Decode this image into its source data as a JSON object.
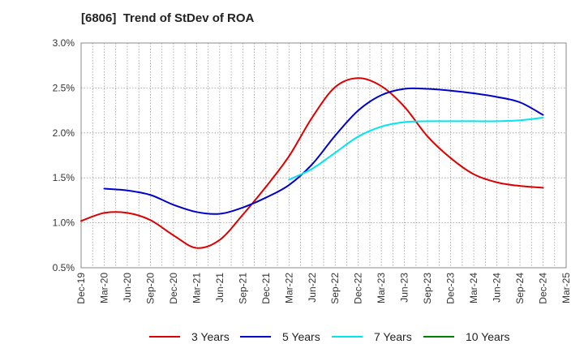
{
  "title": "[6806]  Trend of StDev of ROA",
  "chart_data": {
    "type": "line",
    "title": "[6806]  Trend of StDev of ROA",
    "xlabel": "",
    "ylabel": "",
    "x_tick_labels": [
      "Dec-19",
      "Mar-20",
      "Jun-20",
      "Sep-20",
      "Dec-20",
      "Mar-21",
      "Jun-21",
      "Sep-21",
      "Dec-21",
      "Mar-22",
      "Jun-22",
      "Sep-22",
      "Dec-22",
      "Mar-23",
      "Jun-23",
      "Sep-23",
      "Dec-23",
      "Mar-24",
      "Jun-24",
      "Sep-24",
      "Dec-24",
      "Mar-25"
    ],
    "y_tick_labels": [
      "3.0%",
      "2.5%",
      "2.0%",
      "1.5%",
      "1.0%",
      "0.5%"
    ],
    "ylim": [
      0.5,
      3.0
    ],
    "y_unit": "%",
    "grid": true,
    "legend_position": "bottom",
    "series": [
      {
        "name": "3 Years",
        "color": "#dd0000",
        "values": [
          1.02,
          1.11,
          1.11,
          1.03,
          0.86,
          0.72,
          0.81,
          1.09,
          1.4,
          1.74,
          2.17,
          2.51,
          2.61,
          2.52,
          2.29,
          1.96,
          1.72,
          1.54,
          1.45,
          1.41,
          1.39,
          null
        ]
      },
      {
        "name": "5 Years",
        "color": "#0000cc",
        "values": [
          null,
          1.38,
          1.36,
          1.31,
          1.2,
          1.12,
          1.1,
          1.17,
          1.28,
          1.42,
          1.65,
          1.97,
          2.25,
          2.42,
          2.49,
          2.49,
          2.47,
          2.44,
          2.4,
          2.34,
          2.2,
          null
        ]
      },
      {
        "name": "7 Years",
        "color": "#00e5ee",
        "values": [
          null,
          null,
          null,
          null,
          null,
          null,
          null,
          null,
          null,
          1.48,
          1.6,
          1.78,
          1.96,
          2.07,
          2.12,
          2.13,
          2.13,
          2.13,
          2.13,
          2.14,
          2.17,
          null
        ]
      },
      {
        "name": "10 Years",
        "color": "#008000",
        "values": [
          null,
          null,
          null,
          null,
          null,
          null,
          null,
          null,
          null,
          null,
          null,
          null,
          null,
          null,
          null,
          null,
          null,
          null,
          null,
          null,
          null,
          null
        ]
      }
    ]
  }
}
